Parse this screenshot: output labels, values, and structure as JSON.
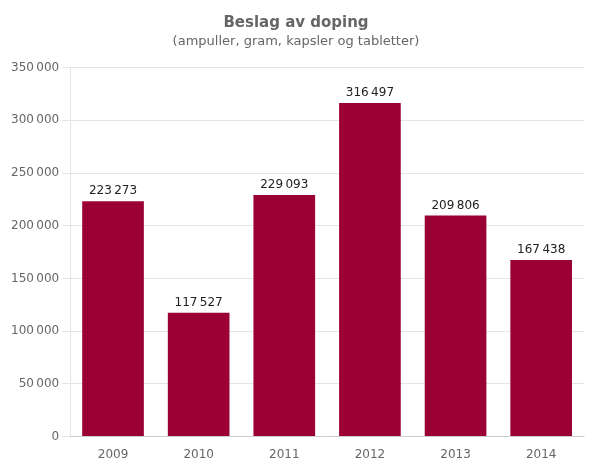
{
  "chart_data": {
    "type": "bar",
    "title": "Beslag av doping",
    "subtitle": "(ampuller, gram, kapsler og tabletter)",
    "categories": [
      "2009",
      "2010",
      "2011",
      "2012",
      "2013",
      "2014"
    ],
    "values": [
      223273,
      117527,
      229093,
      316497,
      209806,
      167438
    ],
    "value_labels": [
      "223 273",
      "117 527",
      "229 093",
      "316 497",
      "209 806",
      "167 438"
    ],
    "color": "#9B0035",
    "ylim": [
      0,
      350000
    ],
    "yticks": [
      0,
      {
        "value": 50000,
        "label": "50 000"
      },
      {
        "value": 100000,
        "label": "100 000"
      },
      {
        "value": 150000,
        "label": "150 000"
      },
      {
        "value": 200000,
        "label": "200 000"
      },
      {
        "value": 250000,
        "label": "250 000"
      },
      {
        "value": 300000,
        "label": "300 000"
      },
      {
        "value": 350000,
        "label": "350 000"
      }
    ],
    "grid": true,
    "data_labels": true
  }
}
